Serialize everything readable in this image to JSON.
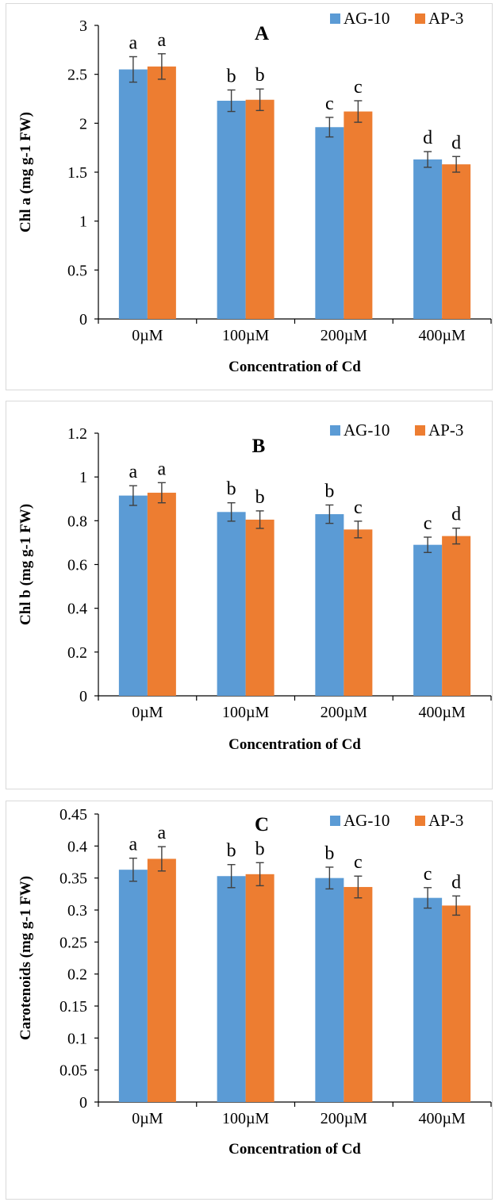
{
  "colors": {
    "AG-10": "#5b9bd5",
    "AP-3": "#ed7d31",
    "axis": "#000000",
    "error_bar": "#404040"
  },
  "chart_data": [
    {
      "type": "bar",
      "panel_label": "A",
      "title": "",
      "categories": [
        "0µM",
        "100µM",
        "200µM",
        "400µM"
      ],
      "series": [
        {
          "name": "AG-10",
          "values": [
            2.55,
            2.23,
            1.96,
            1.63
          ],
          "errors": [
            0.13,
            0.11,
            0.1,
            0.08
          ],
          "letters": [
            "a",
            "b",
            "c",
            "d"
          ]
        },
        {
          "name": "AP-3",
          "values": [
            2.58,
            2.24,
            2.12,
            1.58
          ],
          "errors": [
            0.13,
            0.11,
            0.11,
            0.08
          ],
          "letters": [
            "a",
            "b",
            "c",
            "d"
          ]
        }
      ],
      "xlabel": "Concentration of Cd",
      "ylabel": "Chl a (mg g-1 FW)",
      "ylim": [
        0,
        3
      ],
      "yticks": [
        "0",
        "0.5",
        "1",
        "1.5",
        "2",
        "2.5",
        "3"
      ],
      "legend_position": "top-right",
      "grid": false
    },
    {
      "type": "bar",
      "panel_label": "B",
      "title": "",
      "categories": [
        "0µM",
        "100µM",
        "200µM",
        "400µM"
      ],
      "series": [
        {
          "name": "AG-10",
          "values": [
            0.915,
            0.84,
            0.83,
            0.69
          ],
          "errors": [
            0.045,
            0.042,
            0.042,
            0.035
          ],
          "letters": [
            "a",
            "b",
            "b",
            "c"
          ]
        },
        {
          "name": "AP-3",
          "values": [
            0.928,
            0.805,
            0.76,
            0.73
          ],
          "errors": [
            0.046,
            0.04,
            0.038,
            0.036
          ],
          "letters": [
            "a",
            "b",
            "c",
            "d"
          ]
        }
      ],
      "xlabel": "Concentration of Cd",
      "ylabel": "Chl b (mg g-1 FW)",
      "ylim": [
        0,
        1.2
      ],
      "yticks": [
        "0",
        "0.2",
        "0.4",
        "0.6",
        "0.8",
        "1",
        "1.2"
      ],
      "legend_position": "top-right",
      "grid": false
    },
    {
      "type": "bar",
      "panel_label": "C",
      "title": "",
      "categories": [
        "0µM",
        "100µM",
        "200µM",
        "400µM"
      ],
      "series": [
        {
          "name": "AG-10",
          "values": [
            0.363,
            0.353,
            0.35,
            0.319
          ],
          "errors": [
            0.018,
            0.018,
            0.017,
            0.016
          ],
          "letters": [
            "a",
            "b",
            "b",
            "c"
          ]
        },
        {
          "name": "AP-3",
          "values": [
            0.38,
            0.356,
            0.336,
            0.307
          ],
          "errors": [
            0.019,
            0.018,
            0.017,
            0.015
          ],
          "letters": [
            "a",
            "b",
            "c",
            "d"
          ]
        }
      ],
      "xlabel": "Concentration of Cd",
      "ylabel": "Carotenoids (mg g-1 FW)",
      "ylim": [
        0,
        0.45
      ],
      "yticks": [
        "0",
        "0.05",
        "0.1",
        "0.15",
        "0.2",
        "0.25",
        "0.3",
        "0.35",
        "0.4",
        "0.45"
      ],
      "legend_position": "top-right",
      "grid": false
    }
  ]
}
